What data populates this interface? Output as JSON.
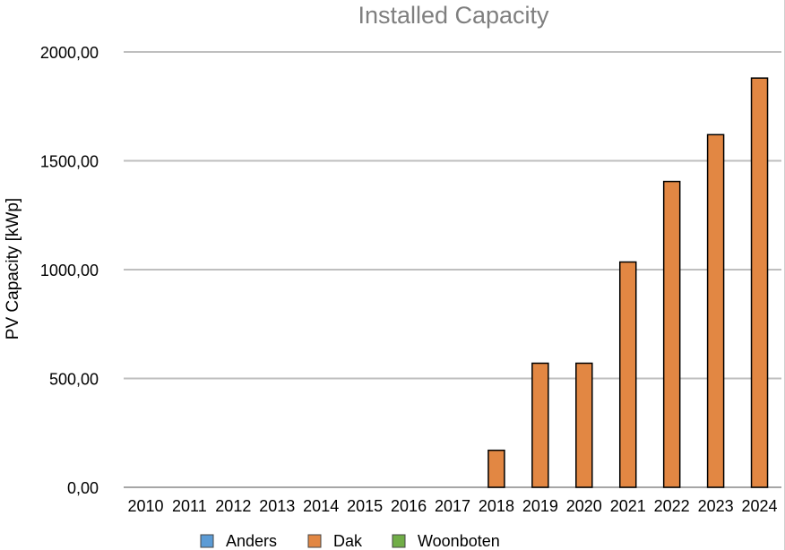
{
  "chart_data": {
    "type": "bar",
    "stacked": true,
    "title": "Installed Capacity",
    "xlabel": "",
    "ylabel": "PV Capacity [kWp]",
    "ylim": [
      0,
      2000
    ],
    "yticks": [
      0,
      500,
      1000,
      1500,
      2000
    ],
    "ytick_labels": [
      "0,00",
      "500,00",
      "1000,00",
      "1500,00",
      "2000,00"
    ],
    "grid": true,
    "legend_position": "bottom",
    "categories": [
      "2010",
      "2011",
      "2012",
      "2013",
      "2014",
      "2015",
      "2016",
      "2017",
      "2018",
      "2019",
      "2020",
      "2021",
      "2022",
      "2023",
      "2024"
    ],
    "series": [
      {
        "name": "Anders",
        "color": "#5b9bd5",
        "values": [
          0,
          0,
          0,
          0,
          0,
          0,
          0,
          0,
          0,
          0,
          0,
          0,
          0,
          0,
          0
        ]
      },
      {
        "name": "Dak",
        "color": "#e28743",
        "values": [
          0,
          0,
          0,
          0,
          0,
          0,
          0,
          0,
          170,
          570,
          570,
          1035,
          1405,
          1620,
          1880
        ]
      },
      {
        "name": "Woonboten",
        "color": "#70ad47",
        "values": [
          0,
          0,
          0,
          0,
          0,
          0,
          0,
          0,
          0,
          0,
          0,
          0,
          0,
          0,
          0
        ]
      }
    ],
    "title_color": "#7f7f7f",
    "grid_color": "#bfbfbf",
    "bar_outline_color": "#000000"
  }
}
